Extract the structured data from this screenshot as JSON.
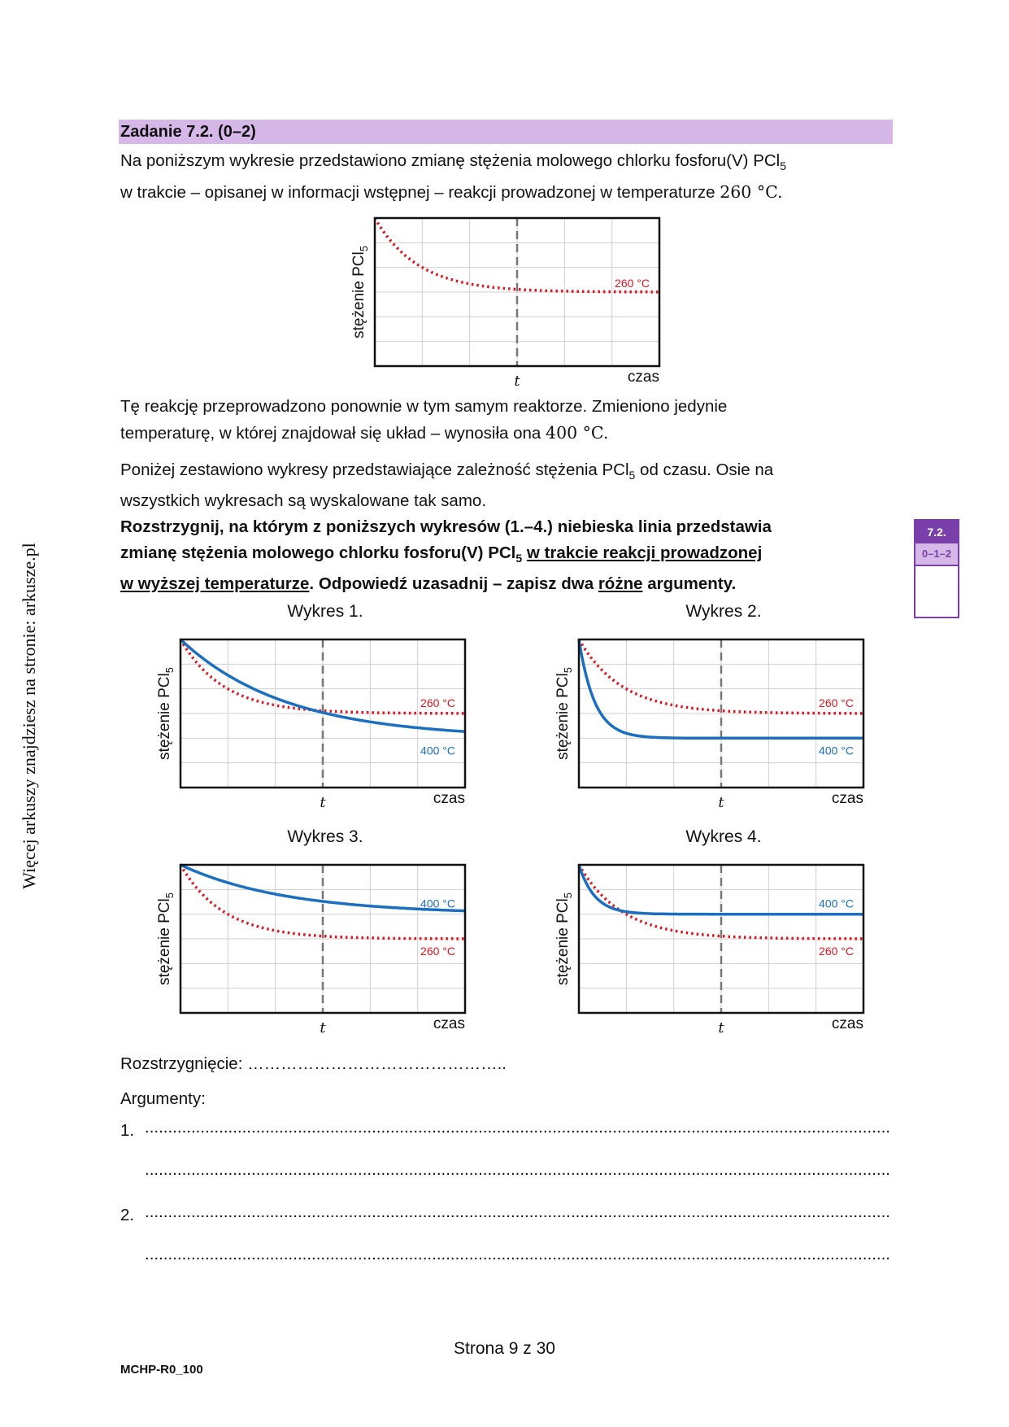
{
  "sidebar_text": "Więcej arkuszy znajdziesz na stronie: arkusze.pl",
  "task": {
    "title": "Zadanie 7.2. (0–2)",
    "intro_line1": "Na poniższym wykresie przedstawiono zmianę stężenia molowego chlorku fosforu(V) PCl",
    "intro_sub1": "5",
    "intro_line2": "w trakcie – opisanej w informacji wstępnej – reakcji prowadzonej w temperaturze ",
    "intro_temp": "260 °C.",
    "para2_line1": "Tę reakcję przeprowadzono ponownie w tym samym reaktorze. Zmieniono jedynie",
    "para2_line2": "temperaturę, w której znajdował się układ – wynosiła ona ",
    "para2_temp": "400 °C.",
    "para3_line1a": "Poniżej zestawiono wykresy przedstawiające zależność stężenia PCl",
    "para3_sub": "5",
    "para3_line1b": " od czasu. Osie na",
    "para3_line2": "wszystkich wykresach są wyskalowane tak samo.",
    "command_line1": "Rozstrzygnij, na którym z poniższych wykresów (1.–4.) niebieska linia przedstawia",
    "command_line2a": "zmianę stężenia molowego chlorku fosforu(V) PCl",
    "command_sub": "5",
    "command_line2b": "w trakcie reakcji prowadzonej",
    "command_line3a": "w wyższej temperaturze",
    "command_line3b": ". Odpowiedź uzasadnij – zapisz dwa ",
    "command_line3c": "różne",
    "command_line3d": " argumenty."
  },
  "badge": {
    "number": "7.2.",
    "score": "0–1–2"
  },
  "chart_labels": {
    "ylabel": "stężenie PCl",
    "ylabel_sub": "5",
    "xlabel": "czas",
    "t_label": "t",
    "temp_red": "260 °C",
    "temp_blue": "400 °C"
  },
  "chart_data": [
    {
      "type": "line",
      "title": "",
      "xlabel": "czas",
      "ylabel": "stężenie PCl5",
      "xlim": [
        0,
        6
      ],
      "ylim": [
        0,
        6
      ],
      "marker_x": 3,
      "series": [
        {
          "name": "260 °C",
          "color": "#e0141e",
          "style": "dotted",
          "y0": 6,
          "yinf": 3,
          "k": 1.1
        }
      ]
    },
    {
      "type": "line",
      "title": "Wykres 1.",
      "xlabel": "czas",
      "ylabel": "stężenie PCl5",
      "xlim": [
        0,
        6
      ],
      "ylim": [
        0,
        6
      ],
      "marker_x": 3,
      "series": [
        {
          "name": "260 °C",
          "color": "#e0141e",
          "style": "dotted",
          "y0": 6,
          "yinf": 3,
          "k": 1.1
        },
        {
          "name": "400 °C",
          "color": "#1a6fc0",
          "style": "solid",
          "y0": 6,
          "yinf": 2,
          "k": 0.45
        }
      ]
    },
    {
      "type": "line",
      "title": "Wykres 2.",
      "xlabel": "czas",
      "ylabel": "stężenie PCl5",
      "xlim": [
        0,
        6
      ],
      "ylim": [
        0,
        6
      ],
      "marker_x": 3,
      "series": [
        {
          "name": "260 °C",
          "color": "#e0141e",
          "style": "dotted",
          "y0": 6,
          "yinf": 3,
          "k": 1.1
        },
        {
          "name": "400 °C",
          "color": "#1a6fc0",
          "style": "solid",
          "y0": 6,
          "yinf": 2,
          "k": 3.0
        }
      ]
    },
    {
      "type": "line",
      "title": "Wykres 3.",
      "xlabel": "czas",
      "ylabel": "stężenie PCl5",
      "xlim": [
        0,
        6
      ],
      "ylim": [
        0,
        6
      ],
      "marker_x": 3,
      "series": [
        {
          "name": "260 °C",
          "color": "#e0141e",
          "style": "dotted",
          "y0": 6,
          "yinf": 3,
          "k": 1.1
        },
        {
          "name": "400 °C",
          "color": "#1a6fc0",
          "style": "solid",
          "y0": 6,
          "yinf": 4,
          "k": 0.45
        }
      ]
    },
    {
      "type": "line",
      "title": "Wykres 4.",
      "xlabel": "czas",
      "ylabel": "stężenie PCl5",
      "xlim": [
        0,
        6
      ],
      "ylim": [
        0,
        6
      ],
      "marker_x": 3,
      "series": [
        {
          "name": "260 °C",
          "color": "#e0141e",
          "style": "dotted",
          "y0": 6,
          "yinf": 3,
          "k": 1.1
        },
        {
          "name": "400 °C",
          "color": "#1a6fc0",
          "style": "solid",
          "y0": 6,
          "yinf": 4,
          "k": 3.0
        }
      ]
    }
  ],
  "answer": {
    "decision_label": "Rozstrzygnięcie: ",
    "decision_dots": "………………………………………..",
    "arguments_label": "Argumenty:",
    "num1": "1.",
    "num2": "2.",
    "dots": "..............................................................................................................................................................................................................................."
  },
  "footer": {
    "page": "Strona 9 z 30",
    "code": "MCHP-R0_100"
  }
}
